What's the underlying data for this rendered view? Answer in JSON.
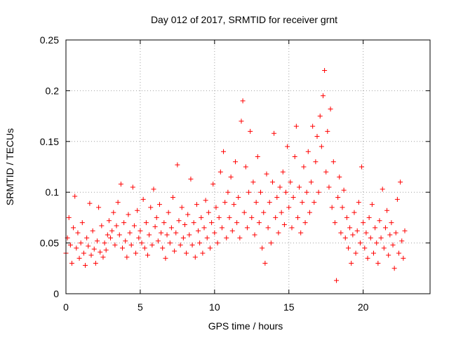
{
  "chart_data": {
    "type": "scatter",
    "title": "Day 012 of 2017, SRMTID for receiver grnt",
    "xlabel": "GPS time / hours",
    "ylabel": "SRMTID / TECUs",
    "xlim": [
      0,
      24.5
    ],
    "ylim": [
      0,
      0.25
    ],
    "xticks": [
      0,
      5,
      10,
      15,
      20
    ],
    "yticks": [
      0,
      0.05,
      0.1,
      0.15,
      0.2,
      0.25
    ],
    "ytick_labels": [
      "0",
      "0.05",
      "0.1",
      "0.15",
      "0.2",
      "0.25"
    ],
    "grid": true,
    "marker": "plus",
    "series": [
      {
        "color": "#ff0000",
        "points": [
          [
            0.0,
            0.04
          ],
          [
            0.1,
            0.055
          ],
          [
            0.2,
            0.075
          ],
          [
            0.3,
            0.048
          ],
          [
            0.4,
            0.03
          ],
          [
            0.5,
            0.065
          ],
          [
            0.6,
            0.096
          ],
          [
            0.7,
            0.045
          ],
          [
            0.8,
            0.06
          ],
          [
            0.9,
            0.035
          ],
          [
            1.0,
            0.05
          ],
          [
            1.1,
            0.07
          ],
          [
            1.2,
            0.04
          ],
          [
            1.3,
            0.028
          ],
          [
            1.4,
            0.055
          ],
          [
            1.5,
            0.047
          ],
          [
            1.6,
            0.089
          ],
          [
            1.7,
            0.038
          ],
          [
            1.8,
            0.062
          ],
          [
            1.9,
            0.044
          ],
          [
            2.0,
            0.03
          ],
          [
            2.1,
            0.052
          ],
          [
            2.2,
            0.085
          ],
          [
            2.3,
            0.041
          ],
          [
            2.4,
            0.067
          ],
          [
            2.5,
            0.036
          ],
          [
            2.6,
            0.05
          ],
          [
            2.7,
            0.043
          ],
          [
            2.8,
            0.058
          ],
          [
            2.9,
            0.072
          ],
          [
            3.0,
            0.055
          ],
          [
            3.1,
            0.062
          ],
          [
            3.2,
            0.08
          ],
          [
            3.3,
            0.048
          ],
          [
            3.4,
            0.067
          ],
          [
            3.5,
            0.09
          ],
          [
            3.6,
            0.058
          ],
          [
            3.7,
            0.108
          ],
          [
            3.8,
            0.045
          ],
          [
            3.9,
            0.07
          ],
          [
            4.0,
            0.052
          ],
          [
            4.1,
            0.036
          ],
          [
            4.2,
            0.078
          ],
          [
            4.3,
            0.06
          ],
          [
            4.4,
            0.048
          ],
          [
            4.5,
            0.105
          ],
          [
            4.6,
            0.067
          ],
          [
            4.7,
            0.04
          ],
          [
            4.8,
            0.082
          ],
          [
            4.9,
            0.055
          ],
          [
            5.0,
            0.062
          ],
          [
            5.1,
            0.05
          ],
          [
            5.2,
            0.093
          ],
          [
            5.3,
            0.045
          ],
          [
            5.4,
            0.07
          ],
          [
            5.5,
            0.038
          ],
          [
            5.6,
            0.058
          ],
          [
            5.7,
            0.085
          ],
          [
            5.8,
            0.048
          ],
          [
            5.9,
            0.103
          ],
          [
            6.0,
            0.066
          ],
          [
            6.1,
            0.075
          ],
          [
            6.2,
            0.052
          ],
          [
            6.3,
            0.088
          ],
          [
            6.4,
            0.06
          ],
          [
            6.5,
            0.045
          ],
          [
            6.6,
            0.07
          ],
          [
            6.7,
            0.035
          ],
          [
            6.8,
            0.058
          ],
          [
            6.9,
            0.08
          ],
          [
            7.0,
            0.05
          ],
          [
            7.1,
            0.065
          ],
          [
            7.2,
            0.095
          ],
          [
            7.3,
            0.042
          ],
          [
            7.4,
            0.06
          ],
          [
            7.5,
            0.127
          ],
          [
            7.6,
            0.072
          ],
          [
            7.7,
            0.048
          ],
          [
            7.8,
            0.085
          ],
          [
            7.9,
            0.055
          ],
          [
            8.0,
            0.068
          ],
          [
            8.1,
            0.04
          ],
          [
            8.2,
            0.078
          ],
          [
            8.3,
            0.058
          ],
          [
            8.4,
            0.113
          ],
          [
            8.5,
            0.048
          ],
          [
            8.6,
            0.07
          ],
          [
            8.7,
            0.036
          ],
          [
            8.8,
            0.088
          ],
          [
            8.9,
            0.062
          ],
          [
            9.0,
            0.05
          ],
          [
            9.1,
            0.075
          ],
          [
            9.2,
            0.04
          ],
          [
            9.3,
            0.065
          ],
          [
            9.4,
            0.092
          ],
          [
            9.5,
            0.055
          ],
          [
            9.6,
            0.08
          ],
          [
            9.7,
            0.045
          ],
          [
            9.8,
            0.07
          ],
          [
            9.9,
            0.108
          ],
          [
            10.0,
            0.06
          ],
          [
            10.1,
            0.085
          ],
          [
            10.2,
            0.05
          ],
          [
            10.3,
            0.075
          ],
          [
            10.4,
            0.12
          ],
          [
            10.5,
            0.065
          ],
          [
            10.6,
            0.14
          ],
          [
            10.7,
            0.09
          ],
          [
            10.8,
            0.055
          ],
          [
            10.9,
            0.1
          ],
          [
            11.0,
            0.075
          ],
          [
            11.1,
            0.115
          ],
          [
            11.2,
            0.062
          ],
          [
            11.3,
            0.088
          ],
          [
            11.4,
            0.13
          ],
          [
            11.5,
            0.07
          ],
          [
            11.6,
            0.095
          ],
          [
            11.7,
            0.055
          ],
          [
            11.8,
            0.17
          ],
          [
            11.9,
            0.19
          ],
          [
            12.0,
            0.08
          ],
          [
            12.1,
            0.125
          ],
          [
            12.2,
            0.065
          ],
          [
            12.3,
            0.1
          ],
          [
            12.4,
            0.16
          ],
          [
            12.5,
            0.075
          ],
          [
            12.6,
            0.11
          ],
          [
            12.7,
            0.058
          ],
          [
            12.8,
            0.09
          ],
          [
            12.9,
            0.135
          ],
          [
            13.0,
            0.07
          ],
          [
            13.1,
            0.1
          ],
          [
            13.2,
            0.045
          ],
          [
            13.3,
            0.08
          ],
          [
            13.4,
            0.03
          ],
          [
            13.5,
            0.118
          ],
          [
            13.6,
            0.065
          ],
          [
            13.7,
            0.09
          ],
          [
            13.8,
            0.05
          ],
          [
            13.9,
            0.11
          ],
          [
            14.0,
            0.158
          ],
          [
            14.1,
            0.075
          ],
          [
            14.2,
            0.095
          ],
          [
            14.3,
            0.06
          ],
          [
            14.4,
            0.105
          ],
          [
            14.5,
            0.08
          ],
          [
            14.6,
            0.12
          ],
          [
            14.7,
            0.068
          ],
          [
            14.8,
            0.1
          ],
          [
            14.9,
            0.145
          ],
          [
            15.0,
            0.085
          ],
          [
            15.1,
            0.11
          ],
          [
            15.2,
            0.065
          ],
          [
            15.3,
            0.095
          ],
          [
            15.4,
            0.135
          ],
          [
            15.5,
            0.165
          ],
          [
            15.6,
            0.075
          ],
          [
            15.7,
            0.105
          ],
          [
            15.8,
            0.06
          ],
          [
            15.9,
            0.09
          ],
          [
            16.0,
            0.125
          ],
          [
            16.1,
            0.07
          ],
          [
            16.2,
            0.1
          ],
          [
            16.3,
            0.14
          ],
          [
            16.4,
            0.08
          ],
          [
            16.5,
            0.11
          ],
          [
            16.6,
            0.165
          ],
          [
            16.7,
            0.09
          ],
          [
            16.8,
            0.13
          ],
          [
            16.9,
            0.155
          ],
          [
            17.0,
            0.1
          ],
          [
            17.1,
            0.175
          ],
          [
            17.2,
            0.145
          ],
          [
            17.3,
            0.195
          ],
          [
            17.4,
            0.22
          ],
          [
            17.5,
            0.12
          ],
          [
            17.6,
            0.16
          ],
          [
            17.7,
            0.105
          ],
          [
            17.8,
            0.182
          ],
          [
            17.9,
            0.085
          ],
          [
            18.0,
            0.13
          ],
          [
            18.1,
            0.07
          ],
          [
            18.2,
            0.013
          ],
          [
            18.3,
            0.095
          ],
          [
            18.4,
            0.115
          ],
          [
            18.5,
            0.06
          ],
          [
            18.6,
            0.085
          ],
          [
            18.7,
            0.102
          ],
          [
            18.8,
            0.055
          ],
          [
            18.9,
            0.075
          ],
          [
            19.0,
            0.045
          ],
          [
            19.1,
            0.065
          ],
          [
            19.2,
            0.03
          ],
          [
            19.3,
            0.058
          ],
          [
            19.4,
            0.08
          ],
          [
            19.5,
            0.04
          ],
          [
            19.6,
            0.062
          ],
          [
            19.7,
            0.09
          ],
          [
            19.8,
            0.05
          ],
          [
            19.9,
            0.125
          ],
          [
            20.0,
            0.07
          ],
          [
            20.1,
            0.045
          ],
          [
            20.2,
            0.06
          ],
          [
            20.3,
            0.035
          ],
          [
            20.4,
            0.075
          ],
          [
            20.5,
            0.055
          ],
          [
            20.6,
            0.088
          ],
          [
            20.7,
            0.04
          ],
          [
            20.8,
            0.065
          ],
          [
            20.9,
            0.05
          ],
          [
            21.0,
            0.03
          ],
          [
            21.1,
            0.072
          ],
          [
            21.2,
            0.055
          ],
          [
            21.3,
            0.103
          ],
          [
            21.4,
            0.045
          ],
          [
            21.5,
            0.065
          ],
          [
            21.6,
            0.082
          ],
          [
            21.7,
            0.038
          ],
          [
            21.8,
            0.058
          ],
          [
            21.9,
            0.07
          ],
          [
            22.0,
            0.048
          ],
          [
            22.1,
            0.025
          ],
          [
            22.2,
            0.06
          ],
          [
            22.3,
            0.093
          ],
          [
            22.4,
            0.04
          ],
          [
            22.5,
            0.11
          ],
          [
            22.6,
            0.052
          ],
          [
            22.7,
            0.035
          ],
          [
            22.8,
            0.062
          ]
        ]
      }
    ]
  }
}
